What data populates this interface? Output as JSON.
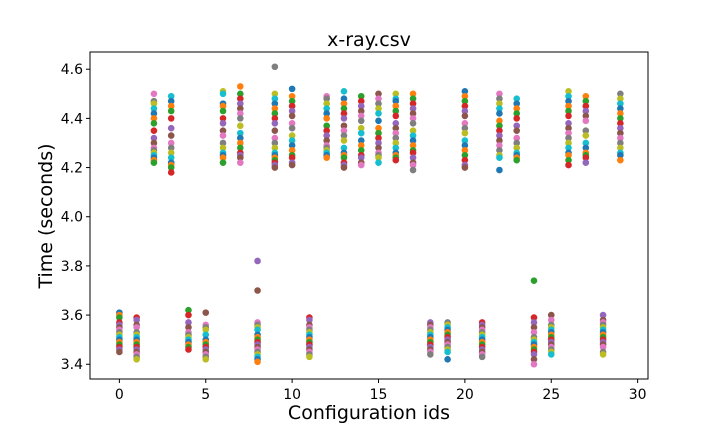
{
  "chart_data": {
    "type": "scatter",
    "title": "x-ray.csv",
    "xlabel": "Configuration ids",
    "ylabel": "Time (seconds)",
    "xlim": [
      -1.7,
      30.6
    ],
    "ylim": [
      3.34,
      4.67
    ],
    "xticks": [
      0,
      5,
      10,
      15,
      20,
      25,
      30
    ],
    "yticks": [
      3.4,
      3.6,
      3.8,
      4.0,
      4.2,
      4.4,
      4.6
    ],
    "ytick_labels": [
      "3.4",
      "3.6",
      "3.8",
      "4.0",
      "4.2",
      "4.4",
      "4.6"
    ],
    "grid": false,
    "legend": "none",
    "palette": [
      "#1f77b4",
      "#ff7f0e",
      "#2ca02c",
      "#d62728",
      "#9467bd",
      "#8c564b",
      "#e377c2",
      "#7f7f7f",
      "#bcbd22",
      "#17becf"
    ],
    "groups": [
      {
        "x": 0,
        "values": [
          3.61,
          3.6,
          3.59,
          3.57,
          3.56,
          3.55,
          3.54,
          3.53,
          3.52,
          3.51,
          3.5,
          3.49,
          3.48,
          3.47,
          3.46,
          3.45
        ]
      },
      {
        "x": 1,
        "values": [
          3.59,
          3.58,
          3.56,
          3.55,
          3.53,
          3.52,
          3.51,
          3.5,
          3.49,
          3.48,
          3.47,
          3.46,
          3.45,
          3.44,
          3.43,
          3.42
        ]
      },
      {
        "x": 2,
        "values": [
          4.5,
          4.47,
          4.46,
          4.44,
          4.42,
          4.4,
          4.38,
          4.35,
          4.32,
          4.3,
          4.28,
          4.27,
          4.26,
          4.25,
          4.24,
          4.23,
          4.22
        ]
      },
      {
        "x": 3,
        "values": [
          4.49,
          4.47,
          4.45,
          4.43,
          4.4,
          4.36,
          4.33,
          4.3,
          4.28,
          4.26,
          4.24,
          4.22,
          4.21,
          4.2,
          4.18
        ]
      },
      {
        "x": 4,
        "values": [
          3.62,
          3.6,
          3.57,
          3.55,
          3.53,
          3.52,
          3.51,
          3.5,
          3.49,
          3.48,
          3.47,
          3.46
        ]
      },
      {
        "x": 5,
        "values": [
          3.61,
          3.56,
          3.55,
          3.54,
          3.52,
          3.5,
          3.49,
          3.48,
          3.47,
          3.46,
          3.45,
          3.44,
          3.43,
          3.42
        ]
      },
      {
        "x": 6,
        "values": [
          4.51,
          4.5,
          4.46,
          4.45,
          4.43,
          4.4,
          4.38,
          4.35,
          4.33,
          4.3,
          4.28,
          4.26,
          4.25,
          4.24,
          4.22
        ]
      },
      {
        "x": 7,
        "values": [
          4.53,
          4.5,
          4.48,
          4.46,
          4.44,
          4.42,
          4.4,
          4.37,
          4.34,
          4.32,
          4.3,
          4.28,
          4.26,
          4.25,
          4.24,
          4.22
        ]
      },
      {
        "x": 8,
        "values": [
          3.82,
          3.7,
          3.57,
          3.56,
          3.55,
          3.54,
          3.52,
          3.51,
          3.5,
          3.49,
          3.48,
          3.47,
          3.46,
          3.45,
          3.44,
          3.43,
          3.42,
          3.41
        ]
      },
      {
        "x": 9,
        "values": [
          4.61,
          4.5,
          4.48,
          4.46,
          4.44,
          4.42,
          4.4,
          4.38,
          4.35,
          4.32,
          4.3,
          4.28,
          4.26,
          4.25,
          4.24,
          4.23,
          4.22,
          4.21,
          4.2
        ]
      },
      {
        "x": 10,
        "values": [
          4.52,
          4.49,
          4.47,
          4.45,
          4.43,
          4.41,
          4.38,
          4.36,
          4.33,
          4.31,
          4.29,
          4.27,
          4.25,
          4.24,
          4.22,
          4.21
        ]
      },
      {
        "x": 11,
        "values": [
          3.59,
          3.58,
          3.56,
          3.55,
          3.54,
          3.53,
          3.52,
          3.51,
          3.5,
          3.49,
          3.48,
          3.47,
          3.46,
          3.45,
          3.44,
          3.43
        ]
      },
      {
        "x": 12,
        "values": [
          4.49,
          4.48,
          4.46,
          4.44,
          4.42,
          4.4,
          4.37,
          4.35,
          4.33,
          4.31,
          4.29,
          4.28,
          4.27,
          4.26,
          4.25,
          4.24
        ]
      },
      {
        "x": 13,
        "values": [
          4.51,
          4.48,
          4.46,
          4.44,
          4.42,
          4.4,
          4.37,
          4.35,
          4.33,
          4.31,
          4.28,
          4.26,
          4.25,
          4.24,
          4.22,
          4.21,
          4.2
        ]
      },
      {
        "x": 14,
        "values": [
          4.49,
          4.47,
          4.45,
          4.43,
          4.41,
          4.39,
          4.36,
          4.34,
          4.31,
          4.29,
          4.27,
          4.25,
          4.24,
          4.22,
          4.21
        ]
      },
      {
        "x": 15,
        "values": [
          4.5,
          4.48,
          4.46,
          4.44,
          4.42,
          4.39,
          4.36,
          4.34,
          4.32,
          4.3,
          4.28,
          4.26,
          4.25,
          4.24,
          4.22
        ]
      },
      {
        "x": 16,
        "values": [
          4.5,
          4.48,
          4.47,
          4.45,
          4.43,
          4.41,
          4.38,
          4.36,
          4.34,
          4.32,
          4.3,
          4.28,
          4.26,
          4.25,
          4.24,
          4.23
        ]
      },
      {
        "x": 17,
        "values": [
          4.5,
          4.48,
          4.46,
          4.44,
          4.42,
          4.4,
          4.38,
          4.35,
          4.33,
          4.31,
          4.29,
          4.27,
          4.26,
          4.24,
          4.22,
          4.21,
          4.19
        ]
      },
      {
        "x": 18,
        "values": [
          3.57,
          3.56,
          3.55,
          3.54,
          3.53,
          3.52,
          3.51,
          3.5,
          3.49,
          3.48,
          3.47,
          3.46,
          3.45,
          3.44
        ]
      },
      {
        "x": 19,
        "values": [
          3.57,
          3.56,
          3.55,
          3.54,
          3.53,
          3.52,
          3.51,
          3.5,
          3.49,
          3.48,
          3.47,
          3.46,
          3.45,
          3.42
        ]
      },
      {
        "x": 20,
        "values": [
          4.51,
          4.49,
          4.47,
          4.45,
          4.43,
          4.41,
          4.38,
          4.36,
          4.34,
          4.31,
          4.29,
          4.27,
          4.25,
          4.23,
          4.21,
          4.2
        ]
      },
      {
        "x": 21,
        "values": [
          3.57,
          3.56,
          3.55,
          3.54,
          3.53,
          3.52,
          3.51,
          3.5,
          3.49,
          3.48,
          3.47,
          3.46,
          3.45,
          3.44,
          3.43
        ]
      },
      {
        "x": 22,
        "values": [
          4.5,
          4.48,
          4.46,
          4.44,
          4.42,
          4.39,
          4.37,
          4.35,
          4.33,
          4.31,
          4.29,
          4.27,
          4.25,
          4.24,
          4.19
        ]
      },
      {
        "x": 23,
        "values": [
          4.48,
          4.46,
          4.44,
          4.42,
          4.4,
          4.37,
          4.35,
          4.32,
          4.3,
          4.28,
          4.26,
          4.25,
          4.24,
          4.23
        ]
      },
      {
        "x": 24,
        "values": [
          3.74,
          3.59,
          3.57,
          3.55,
          3.53,
          3.51,
          3.5,
          3.49,
          3.48,
          3.47,
          3.46,
          3.45,
          3.44,
          3.42,
          3.4
        ]
      },
      {
        "x": 25,
        "values": [
          3.6,
          3.58,
          3.56,
          3.55,
          3.54,
          3.53,
          3.52,
          3.51,
          3.5,
          3.49,
          3.48,
          3.47,
          3.46,
          3.45,
          3.44
        ]
      },
      {
        "x": 26,
        "values": [
          4.51,
          4.49,
          4.47,
          4.45,
          4.43,
          4.41,
          4.38,
          4.36,
          4.34,
          4.32,
          4.3,
          4.28,
          4.26,
          4.25,
          4.23,
          4.21
        ]
      },
      {
        "x": 27,
        "values": [
          4.49,
          4.47,
          4.45,
          4.43,
          4.41,
          4.39,
          4.35,
          4.33,
          4.3,
          4.28,
          4.26,
          4.25,
          4.24,
          4.22
        ]
      },
      {
        "x": 28,
        "values": [
          3.6,
          3.58,
          3.57,
          3.56,
          3.55,
          3.54,
          3.53,
          3.52,
          3.51,
          3.5,
          3.49,
          3.48,
          3.47,
          3.45,
          3.44
        ]
      },
      {
        "x": 29,
        "values": [
          4.5,
          4.48,
          4.46,
          4.44,
          4.42,
          4.4,
          4.38,
          4.36,
          4.34,
          4.32,
          4.3,
          4.28,
          4.26,
          4.25,
          4.23
        ]
      }
    ]
  }
}
